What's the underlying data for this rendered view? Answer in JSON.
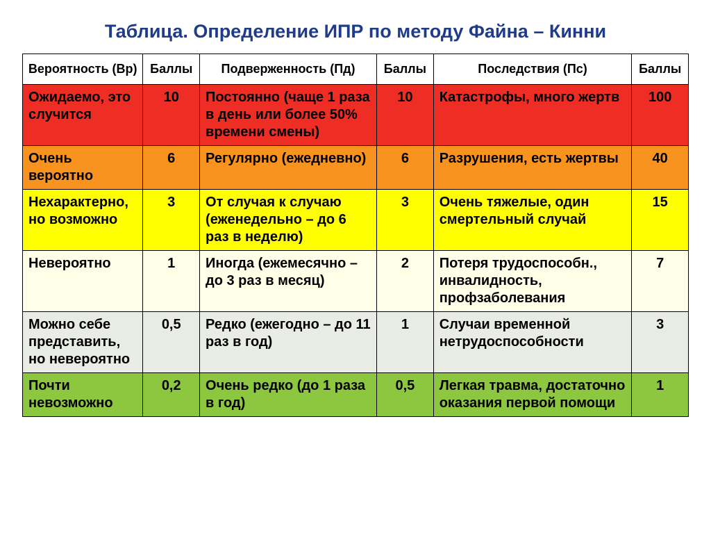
{
  "title": {
    "text": "Таблица. Определение ИПР по методу Файна – Кинни",
    "color": "#1f3c8a",
    "fontsize": 27
  },
  "headers": {
    "probability": "Вероятность (Вр)",
    "score1": "Баллы",
    "exposure": "Подверженность (Пд)",
    "score2": "Баллы",
    "consequence": "Последствия (Пс)",
    "score3": "Баллы"
  },
  "header_bg": "#ffffff",
  "row_colors": [
    "#ee2e24",
    "#f7931e",
    "#ffff00",
    "#ffffe8",
    "#e8ece4",
    "#8dc63f"
  ],
  "rows": [
    {
      "probability": "Ожидаемо, это случится",
      "score1": "10",
      "exposure": "Постоянно (чаще 1 раза в день или более 50% времени смены)",
      "score2": "10",
      "consequence": "Катастрофы, много жертв",
      "score3": "100"
    },
    {
      "probability": "Очень вероятно",
      "score1": "6",
      "exposure": "Регулярно (ежедневно)",
      "score2": "6",
      "consequence": "Разрушения, есть жертвы",
      "score3": "40"
    },
    {
      "probability": "Нехарактерно, но возможно",
      "score1": "3",
      "exposure": "От случая к случаю (еженедельно – до 6 раз в неделю)",
      "score2": "3",
      "consequence": "Очень тяжелые, один смертельный случай",
      "score3": "15"
    },
    {
      "probability": "Невероятно",
      "score1": "1",
      "exposure": "Иногда (ежемесячно – до 3 раз в месяц)",
      "score2": "2",
      "consequence": "Потеря трудоспособн., инвалидность, профзаболевания",
      "score3": "7"
    },
    {
      "probability": "Можно себе представить, но невероятно",
      "score1": "0,5",
      "exposure": "Редко (ежегодно – до 11 раз в год)",
      "score2": "1",
      "consequence": "Случаи временной нетрудоспособности",
      "score3": "3"
    },
    {
      "probability": "Почти невозможно",
      "score1": "0,2",
      "exposure": "Очень редко (до 1 раза в год)",
      "score2": "0,5",
      "consequence": "Легкая травма, достаточно оказания первой помощи",
      "score3": "1"
    }
  ]
}
